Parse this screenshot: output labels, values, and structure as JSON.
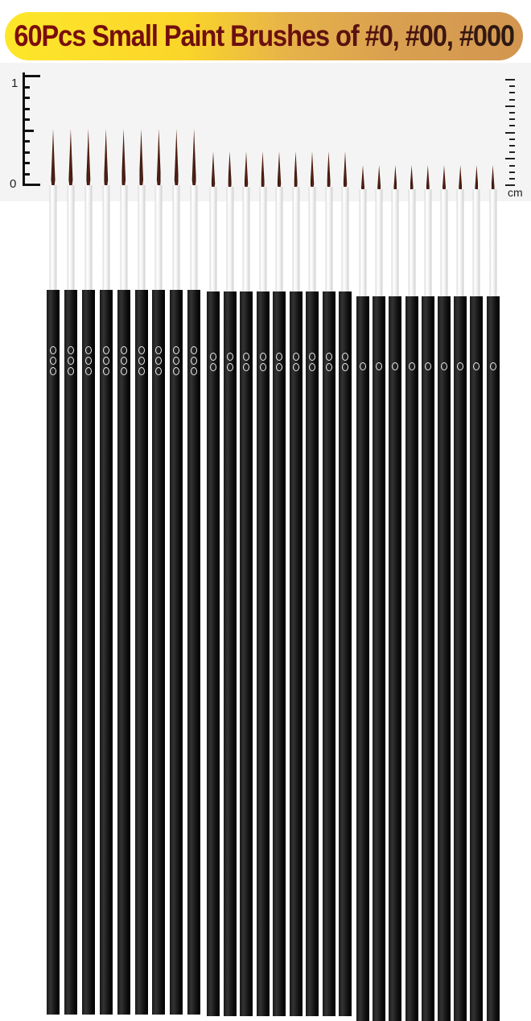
{
  "title": "60Pcs Small Paint Brushes of #0, #00, #000",
  "ruler": {
    "left_top_label": "1",
    "left_bottom_label": "0",
    "right_unit": "cm"
  },
  "colors": {
    "banner_start": "#fde72a",
    "banner_end": "#d29650",
    "title_text": "#7a1010",
    "handle": "#111111",
    "bristle": "#4a1c10"
  },
  "brush_groups": [
    {
      "size": "#000",
      "marking": "000",
      "count_shown": 9
    },
    {
      "size": "#00",
      "marking": "00",
      "count_shown": 9
    },
    {
      "size": "#0",
      "marking": "0",
      "count_shown": 9
    }
  ]
}
